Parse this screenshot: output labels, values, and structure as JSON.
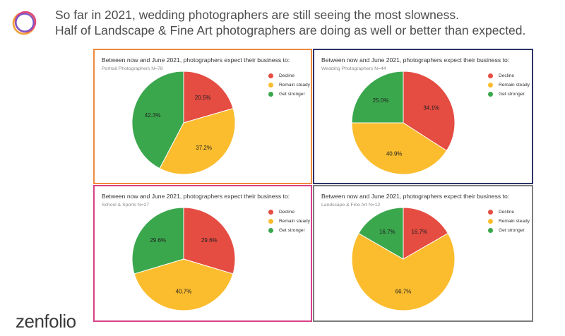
{
  "headline": {
    "line1": "So far in 2021, wedding photographers are still seeing the most slowness.",
    "line2": "Half of Landscape & Fine Art photographers are doing as well or better than expected."
  },
  "brand": {
    "name": "zenfolio"
  },
  "colors": {
    "decline": "#e54c42",
    "remain": "#fbbd2e",
    "stronger": "#3aa74d",
    "logo_ring_1": "#f2a33a",
    "logo_ring_2": "#e0457b",
    "logo_ring_3": "#7b57c7"
  },
  "legend_labels": [
    "Decline",
    "Remain steady",
    "Get stronger"
  ],
  "chart_data": [
    {
      "type": "pie",
      "title": "Between now and June 2021, photographers expect their business to:",
      "subtitle": "Portrait Photographers N=78",
      "border_color": "#f08a3c",
      "slices": [
        {
          "label": "Decline",
          "value": 20.5,
          "display": "20.5%"
        },
        {
          "label": "Remain steady",
          "value": 37.2,
          "display": "37.2%"
        },
        {
          "label": "Get stronger",
          "value": 42.3,
          "display": "42.3%"
        }
      ]
    },
    {
      "type": "pie",
      "title": "Between now and June 2021, photographers expect their business to:",
      "subtitle": "Wedding Photographers N=44",
      "border_color": "#2c3466",
      "slices": [
        {
          "label": "Decline",
          "value": 34.1,
          "display": "34.1%"
        },
        {
          "label": "Remain steady",
          "value": 40.9,
          "display": "40.9%"
        },
        {
          "label": "Get stronger",
          "value": 25.0,
          "display": "25.0%"
        }
      ]
    },
    {
      "type": "pie",
      "title": "Between now and June 2021, photographers expect their business to:",
      "subtitle": "School & Sports N=27",
      "border_color": "#d9428a",
      "slices": [
        {
          "label": "Decline",
          "value": 29.6,
          "display": "29.6%"
        },
        {
          "label": "Remain steady",
          "value": 40.7,
          "display": "40.7%"
        },
        {
          "label": "Get stronger",
          "value": 29.6,
          "display": "29.6%"
        }
      ]
    },
    {
      "type": "pie",
      "title": "Between now and June 2021, photographers expect their business to:",
      "subtitle": "Landscape & Fine Art N=12",
      "border_color": "#7d7d7d",
      "slices": [
        {
          "label": "Decline",
          "value": 16.7,
          "display": "16.7%"
        },
        {
          "label": "Remain steady",
          "value": 66.7,
          "display": "66.7%"
        },
        {
          "label": "Get stronger",
          "value": 16.7,
          "display": "16.7%"
        }
      ]
    }
  ]
}
